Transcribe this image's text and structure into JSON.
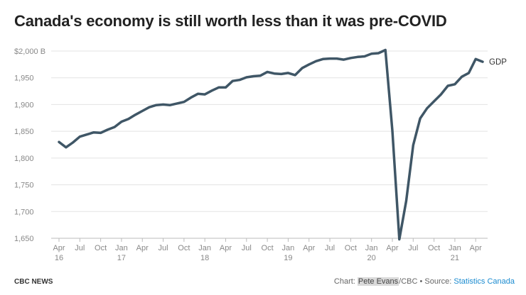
{
  "title": "Canada's economy is still worth less than it was pre-COVID",
  "footer": {
    "publisher": "CBC NEWS",
    "chart_prefix": "Chart: ",
    "author": "Pete Evans",
    "author_suffix": "/CBC",
    "source_sep": " • Source: ",
    "source": "Statistics Canada"
  },
  "colors": {
    "line": "#3f5666",
    "grid": "#e3e3e3",
    "axis": "#bbbbbb",
    "tick_text": "#888888",
    "source_link": "#1a8bd0"
  },
  "chart_data": {
    "type": "line",
    "series": [
      {
        "name": "GDP",
        "values": [
          1830,
          1820,
          1829,
          1840,
          1844,
          1848,
          1847,
          1853,
          1858,
          1868,
          1873,
          1881,
          1888,
          1895,
          1899,
          1900,
          1899,
          1902,
          1905,
          1913,
          1920,
          1919,
          1926,
          1932,
          1932,
          1944,
          1946,
          1951,
          1953,
          1954,
          1961,
          1958,
          1957,
          1959,
          1955,
          1968,
          1975,
          1981,
          1985,
          1986,
          1986,
          1984,
          1987,
          1989,
          1990,
          1995,
          1996,
          2002,
          1851,
          1648,
          1720,
          1824,
          1874,
          1893,
          1906,
          1919,
          1935,
          1938,
          1952,
          1959,
          1985,
          1980
        ]
      }
    ],
    "x_start": "2016-04",
    "x_step": "month",
    "x_tick_labels": [
      {
        "month_index": 0,
        "label": "Apr",
        "year": "16"
      },
      {
        "month_index": 3,
        "label": "Jul"
      },
      {
        "month_index": 6,
        "label": "Oct"
      },
      {
        "month_index": 9,
        "label": "Jan",
        "year": "17"
      },
      {
        "month_index": 12,
        "label": "Apr"
      },
      {
        "month_index": 15,
        "label": "Jul"
      },
      {
        "month_index": 18,
        "label": "Oct"
      },
      {
        "month_index": 21,
        "label": "Jan",
        "year": "18"
      },
      {
        "month_index": 24,
        "label": "Apr"
      },
      {
        "month_index": 27,
        "label": "Jul"
      },
      {
        "month_index": 30,
        "label": "Oct"
      },
      {
        "month_index": 33,
        "label": "Jan",
        "year": "19"
      },
      {
        "month_index": 36,
        "label": "Apr"
      },
      {
        "month_index": 39,
        "label": "Jul"
      },
      {
        "month_index": 42,
        "label": "Oct"
      },
      {
        "month_index": 45,
        "label": "Jan",
        "year": "20"
      },
      {
        "month_index": 48,
        "label": "Apr"
      },
      {
        "month_index": 51,
        "label": "Jul"
      },
      {
        "month_index": 54,
        "label": "Oct"
      },
      {
        "month_index": 57,
        "label": "Jan",
        "year": "21"
      },
      {
        "month_index": 60,
        "label": "Apr"
      }
    ],
    "y_ticks": [
      {
        "value": 2000,
        "label": "$2,000 B"
      },
      {
        "value": 1950,
        "label": "1,950"
      },
      {
        "value": 1900,
        "label": "1,900"
      },
      {
        "value": 1850,
        "label": "1,850"
      },
      {
        "value": 1800,
        "label": "1,800"
      },
      {
        "value": 1750,
        "label": "1,750"
      },
      {
        "value": 1700,
        "label": "1,700"
      },
      {
        "value": 1650,
        "label": "1,650"
      }
    ],
    "ylim": [
      1650,
      2000
    ],
    "grid": true,
    "series_label": "GDP",
    "title": "Canada's economy is still worth less than it was pre-COVID",
    "xlabel": "",
    "ylabel": ""
  }
}
